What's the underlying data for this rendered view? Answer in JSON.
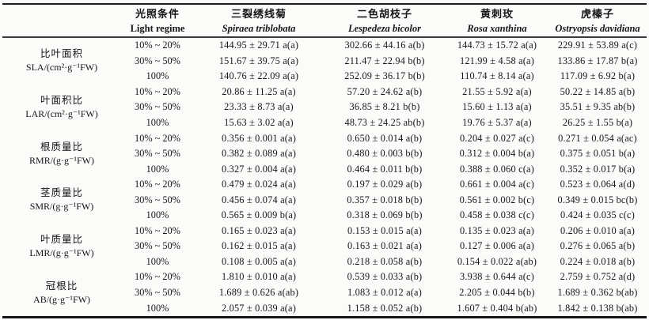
{
  "table": {
    "header": {
      "light_cn": "光照条件",
      "light_en": "Light regime",
      "species": [
        {
          "cn": "三裂绣线菊",
          "latin": "Spiraea triblobata"
        },
        {
          "cn": "二色胡枝子",
          "latin": "Lespedeza bicolor"
        },
        {
          "cn": "黄刺玫",
          "latin": "Rosa xanthina"
        },
        {
          "cn": "虎榛子",
          "latin": "Ostryopsis davidiana"
        }
      ]
    },
    "groups": [
      {
        "name_cn": "比叶面积",
        "unit": "SLA/(cm²·g⁻¹FW)",
        "rows": [
          {
            "light": "10% ~ 20%",
            "values": [
              "144.95 ± 29.71 a(a)",
              "302.66 ± 44.16 a(b)",
              "144.73 ± 15.72 a(a)",
              "229.91 ± 53.89 a(c)"
            ]
          },
          {
            "light": "30% ~ 50%",
            "values": [
              "151.67 ± 39.75 a(a)",
              "211.47 ± 22.94 b(b)",
              "121.99 ± 4.58 a(a)",
              "133.86 ± 17.87 b(a)"
            ]
          },
          {
            "light": "100%",
            "values": [
              "140.76 ± 22.09 a(a)",
              "252.09 ± 36.17 b(b)",
              "110.74 ± 8.14 a(a)",
              "117.09 ± 6.92 b(a)"
            ]
          }
        ]
      },
      {
        "name_cn": "叶面积比",
        "unit": "LAR/(cm²·g⁻¹FW)",
        "rows": [
          {
            "light": "10% ~ 20%",
            "values": [
              "20.86 ± 11.25 a(a)",
              "57.20 ± 24.62 a(b)",
              "21.55 ± 5.92 a(a)",
              "50.22 ± 14.85 a(b)"
            ]
          },
          {
            "light": "30% ~ 50%",
            "values": [
              "23.33 ± 8.73 a(a)",
              "36.85 ± 8.21 b(b)",
              "15.60 ± 1.13 a(a)",
              "35.51 ± 9.35 ab(b)"
            ]
          },
          {
            "light": "100%",
            "values": [
              "15.63 ± 3.02 a(a)",
              "48.73 ± 24.25 ab(b)",
              "19.76 ± 5.37 a(a)",
              "26.25 ± 1.55 b(a)"
            ]
          }
        ]
      },
      {
        "name_cn": "根质量比",
        "unit": "RMR/(g·g⁻¹FW)",
        "rows": [
          {
            "light": "10% ~ 20%",
            "values": [
              "0.356 ± 0.001 a(a)",
              "0.650 ± 0.014 a(b)",
              "0.204 ± 0.027 a(c)",
              "0.271 ± 0.054 a(ac)"
            ]
          },
          {
            "light": "30% ~ 50%",
            "values": [
              "0.382 ± 0.089 a(a)",
              "0.480 ± 0.003 b(b)",
              "0.312 ± 0.004 b(a)",
              "0.375 ± 0.051 b(a)"
            ]
          },
          {
            "light": "100%",
            "values": [
              "0.327 ± 0.004 a(a)",
              "0.464 ± 0.011 b(b)",
              "0.388 ± 0.060 c(a)",
              "0.352 ± 0.017 b(a)"
            ]
          }
        ]
      },
      {
        "name_cn": "茎质量比",
        "unit": "SMR/(g·g⁻¹FW)",
        "rows": [
          {
            "light": "10% ~ 20%",
            "values": [
              "0.479 ± 0.024 a(a)",
              "0.197 ± 0.029 a(b)",
              "0.661 ± 0.004 a(c)",
              "0.523 ± 0.064 a(d)"
            ]
          },
          {
            "light": "30% ~ 50%",
            "values": [
              "0.456 ± 0.074 a(a)",
              "0.357 ± 0.018 b(b)",
              "0.561 ± 0.002 b(c)",
              "0.349 ± 0.015 bc(b)"
            ]
          },
          {
            "light": "100%",
            "values": [
              "0.565 ± 0.009 b(a)",
              "0.318 ± 0.069 b(b)",
              "0.458 ± 0.038 c(c)",
              "0.424 ± 0.035 c(c)"
            ]
          }
        ]
      },
      {
        "name_cn": "叶质量比",
        "unit": "LMR/(g·g⁻¹FW)",
        "rows": [
          {
            "light": "10% ~ 20%",
            "values": [
              "0.165 ± 0.023 a(a)",
              "0.153 ± 0.015 a(a)",
              "0.135 ± 0.023 a(a)",
              "0.206 ± 0.010 a(a)"
            ]
          },
          {
            "light": "30% ~ 50%",
            "values": [
              "0.162 ± 0.015 a(a)",
              "0.163 ± 0.021 a(a)",
              "0.127 ± 0.006 a(a)",
              "0.276 ± 0.065 a(b)"
            ]
          },
          {
            "light": "100%",
            "values": [
              "0.108 ± 0.005 a(a)",
              "0.218 ± 0.058 a(b)",
              "0.154 ± 0.022 a(ab)",
              "0.224 ± 0.018 a(b)"
            ]
          }
        ]
      },
      {
        "name_cn": "冠根比",
        "unit": "AB/(g·g⁻¹FW)",
        "rows": [
          {
            "light": "10% ~ 20%",
            "values": [
              "1.810 ± 0.010 a(a)",
              "0.539 ± 0.033 a(b)",
              "3.938 ± 0.644 a(c)",
              "2.759 ± 0.752 a(d)"
            ]
          },
          {
            "light": "30% ~ 50%",
            "values": [
              "1.689 ± 0.626 a(ab)",
              "1.083 ± 0.012 a(a)",
              "2.205 ± 0.044 b(b)",
              "1.689 ± 0.362 b(ab)"
            ]
          },
          {
            "light": "100%",
            "values": [
              "2.057 ± 0.039 a(a)",
              "1.158 ± 0.052 a(b)",
              "1.607 ± 0.404 b(ab)",
              "1.842 ± 0.138 b(ab)"
            ]
          }
        ]
      }
    ]
  }
}
